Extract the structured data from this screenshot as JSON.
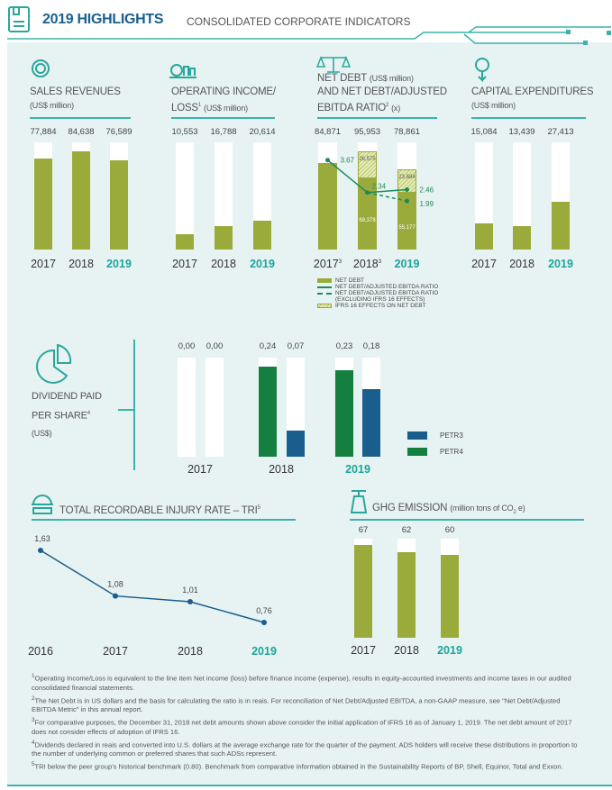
{
  "header": {
    "title": "2019 HIGHLIGHTS",
    "subtitle": "CONSOLIDATED CORPORATE INDICATORS"
  },
  "colors": {
    "olive": "#9aab3c",
    "teal": "#2aa79c",
    "blue": "#1a5e8e",
    "green": "#157f3f"
  },
  "chart_data": [
    {
      "type": "bar",
      "title": "SALES REVENUES",
      "unit": "(US$ million)",
      "categories": [
        "2017",
        "2018",
        "2019"
      ],
      "values": [
        77884,
        84638,
        76589
      ],
      "labels": [
        "77,884",
        "84,638",
        "76,589"
      ],
      "max": 92000
    },
    {
      "type": "bar",
      "title": "OPERATING INCOME/",
      "title2": "LOSS",
      "sup": "1",
      "unit": "(US$ million)",
      "categories": [
        "2017",
        "2018",
        "2019"
      ],
      "values": [
        10553,
        16788,
        20614
      ],
      "labels": [
        "10,553",
        "16,788",
        "20,614"
      ],
      "max": 76000
    },
    {
      "type": "bar",
      "title": "NET DEBT",
      "unit": "(US$ million)",
      "title2": "AND NET DEBT/ADJUSTED",
      "title3": "EBITDA RATIO",
      "sup": "2",
      "unit2": "(x)",
      "categories": [
        "2017",
        "2018",
        "2019"
      ],
      "cat_sups": [
        "3",
        "3",
        ""
      ],
      "totals": [
        84871,
        95953,
        78861
      ],
      "labels": [
        "84,871",
        "95,953",
        "78,861"
      ],
      "net_debt": [
        84871,
        69378,
        55177
      ],
      "net_debt_labels": [
        "",
        "69,378",
        "55,177"
      ],
      "ifrs16": [
        0,
        26575,
        23684
      ],
      "ifrs16_labels": [
        "",
        "26,575",
        "23,684"
      ],
      "ratio": [
        3.67,
        2.34,
        2.46
      ],
      "ratio_labels": [
        "3.67",
        "2.34",
        "2.46"
      ],
      "ratio_ex_ifrs16": [
        null,
        2.34,
        1.99
      ],
      "ratio_ex_labels": [
        "",
        "",
        "1.99"
      ],
      "ratio_max": 5.5,
      "max": 105000,
      "legend": [
        "NET DEBT",
        "NET DEBT/ADJUSTED EBITDA RATIO",
        "NET DEBT/ADJUSTED EBITDA RATIO",
        "(EXCLUDING IFRS 16 EFFECTS)",
        "IFRS 16 EFFECTS ON NET DEBT"
      ]
    },
    {
      "type": "bar",
      "title": "CAPITAL EXPENDITURES",
      "unit": "(US$ million)",
      "categories": [
        "2017",
        "2018",
        "2019"
      ],
      "values": [
        15084,
        13439,
        27413
      ],
      "labels": [
        "15,084",
        "13,439",
        "27,413"
      ],
      "max": 61000
    },
    {
      "type": "bar",
      "title": "DIVIDEND PAID",
      "title2": "PER SHARE",
      "sup": "4",
      "unit": "(US$)",
      "categories": [
        "2017",
        "2018",
        "2019"
      ],
      "series": [
        {
          "name": "PETR4",
          "values": [
            0,
            0.24,
            0.23
          ],
          "labels": [
            "0,00",
            "0,24",
            "0,23"
          ]
        },
        {
          "name": "PETR3",
          "values": [
            0,
            0.07,
            0.18
          ],
          "labels": [
            "0,00",
            "0,07",
            "0,18"
          ]
        }
      ],
      "max": 0.264
    },
    {
      "type": "line",
      "title": "TOTAL RECORDABLE INJURY RATE – TRI",
      "sup": "5",
      "categories": [
        "2016",
        "2017",
        "2018",
        "2019"
      ],
      "values": [
        1.63,
        1.08,
        1.01,
        0.76
      ],
      "labels": [
        "1,63",
        "1,08",
        "1,01",
        "0,76"
      ]
    },
    {
      "type": "bar",
      "title": "GHG EMISSION",
      "unit": "(million tons of CO",
      "unit_sub": "2",
      "unit_end": " e)",
      "categories": [
        "2017",
        "2018",
        "2019"
      ],
      "values": [
        67,
        62,
        60
      ],
      "labels": [
        "67",
        "62",
        "60"
      ],
      "max": 71.5
    }
  ],
  "footnotes": [
    {
      "sup": "1",
      "text": "Operating Income/Loss is equivalent to the line item Net income (loss) before finance income (expense), results in equity-accounted investments and income taxes in our audited consolidated financial statements."
    },
    {
      "sup": "2",
      "text": "The Net Debt is in US dollars and the basis for calculating the ratio is in reais. For reconciliation of Net Debt/Adjusted EBITDA, a non-GAAP measure, see \"Net Debt/Adjusted EBITDA Metric\" in this annual report."
    },
    {
      "sup": "3",
      "text": "For comparative purposes, the December 31, 2018 net debt amounts shown above consider the initial application of IFRS 16 as of January 1, 2019. The net debt amount of 2017 does not consider effects of adoption of IFRS 16."
    },
    {
      "sup": "4",
      "text": "Dividends declared in reais and converted into U.S. dollars at the average exchange rate for the quarter of the payment. ADS holders will receive these distributions in proportion to the number of underlying common or preferred shares that such ADSs represent."
    },
    {
      "sup": "5",
      "text": "TRI below the peer group's historical benchmark (0.80). Benchmark from comparative information obtained in the Sustainability Reports of BP, Shell, Equinor, Total and Exxon."
    }
  ]
}
